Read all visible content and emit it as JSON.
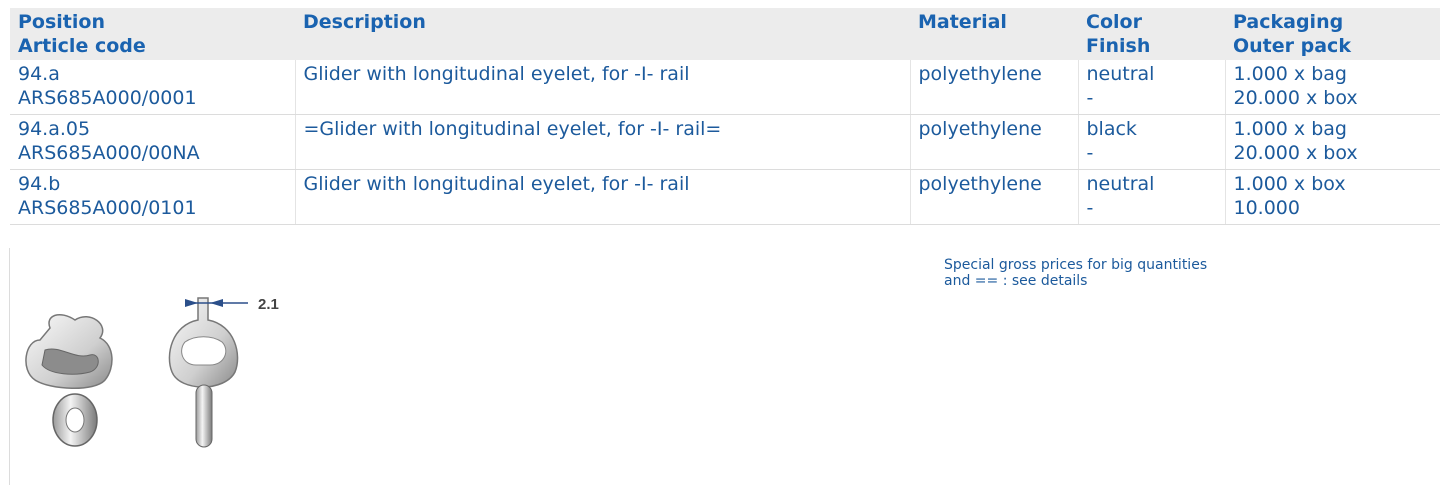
{
  "table": {
    "header": [
      [
        "Position",
        "Article code"
      ],
      [
        "Description"
      ],
      [
        "Material"
      ],
      [
        "Color",
        "Finish"
      ],
      [
        "Packaging",
        "Outer pack"
      ]
    ],
    "rows": [
      [
        [
          "94.a",
          "ARS685A000/0001"
        ],
        [
          "Glider with longitudinal eyelet, for -I- rail"
        ],
        [
          "polyethylene"
        ],
        [
          "neutral",
          "-"
        ],
        [
          "1.000 x bag",
          "20.000 x box"
        ]
      ],
      [
        [
          "94.a.05",
          "ARS685A000/00NA"
        ],
        [
          "=Glider with longitudinal eyelet, for -I- rail="
        ],
        [
          "polyethylene"
        ],
        [
          "black",
          "-"
        ],
        [
          "1.000 x bag",
          "20.000 x box"
        ]
      ],
      [
        [
          "94.b",
          "ARS685A000/0101"
        ],
        [
          "Glider with longitudinal eyelet, for -I- rail"
        ],
        [
          "polyethylene"
        ],
        [
          "neutral",
          "-"
        ],
        [
          "1.000 x box",
          "10.000"
        ]
      ]
    ]
  },
  "note": [
    "Special gross prices for big quantities",
    "and == : see details"
  ],
  "figure": {
    "dimension": "2.1"
  }
}
